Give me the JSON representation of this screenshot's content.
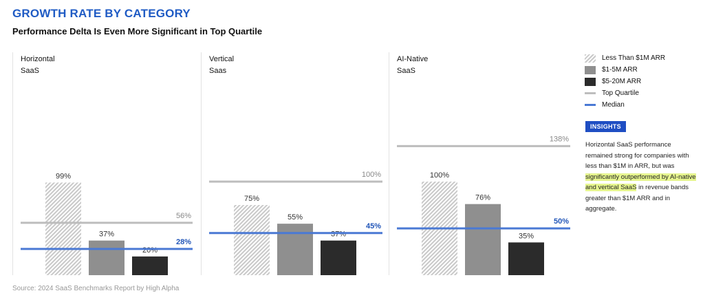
{
  "title": "GROWTH RATE BY CATEGORY",
  "subtitle": "Performance Delta Is Even More Significant in Top Quartile",
  "source": "Source: 2024 SaaS Benchmarks Report by High Alpha",
  "legend": [
    {
      "label": "Less Than $1M ARR",
      "swatch": "hatch"
    },
    {
      "label": "$1-5M ARR",
      "swatch": "mid"
    },
    {
      "label": "$5-20M ARR",
      "swatch": "dark"
    },
    {
      "label": "Top Quartile",
      "swatch": "line-tq"
    },
    {
      "label": "Median",
      "swatch": "line-med"
    }
  ],
  "insights": {
    "badge": "INSIGHTS",
    "text_before": "Horizontal SaaS performance remained strong for companies with less than $1M in ARR, but was ",
    "text_highlight": "significantly outperformed by AI-native and vertical SaaS",
    "text_after": " in revenue bands greater than $1M ARR and in aggregate."
  },
  "colors": {
    "title": "#1f5bc4",
    "hatch": "#c9c9c9",
    "mid_bar": "#8f8f8f",
    "dark_bar": "#2b2b2b",
    "top_quartile": "#bdbdbd",
    "median": "#4a79d4",
    "highlight": "#e6f58f"
  },
  "chart_data": {
    "type": "bar",
    "ylim": [
      0,
      150
    ],
    "categories": [
      "Less Than $1M ARR",
      "$1-5M ARR",
      "$5-20M ARR"
    ],
    "panels": [
      {
        "name_line1": "Horizontal",
        "name_line2": "SaaS",
        "values": [
          99,
          37,
          20
        ],
        "value_labels": [
          "99%",
          "37%",
          "20%"
        ],
        "top_quartile": 56,
        "top_quartile_label": "56%",
        "median": 28,
        "median_label": "28%"
      },
      {
        "name_line1": "Vertical",
        "name_line2": "Saas",
        "values": [
          75,
          55,
          37
        ],
        "value_labels": [
          "75%",
          "55%",
          "37%"
        ],
        "top_quartile": 100,
        "top_quartile_label": "100%",
        "median": 45,
        "median_label": "45%"
      },
      {
        "name_line1": "AI-Native",
        "name_line2": "SaaS",
        "values": [
          100,
          76,
          35
        ],
        "value_labels": [
          "100%",
          "76%",
          "35%"
        ],
        "top_quartile": 138,
        "top_quartile_label": "138%",
        "median": 50,
        "median_label": "50%"
      }
    ]
  }
}
